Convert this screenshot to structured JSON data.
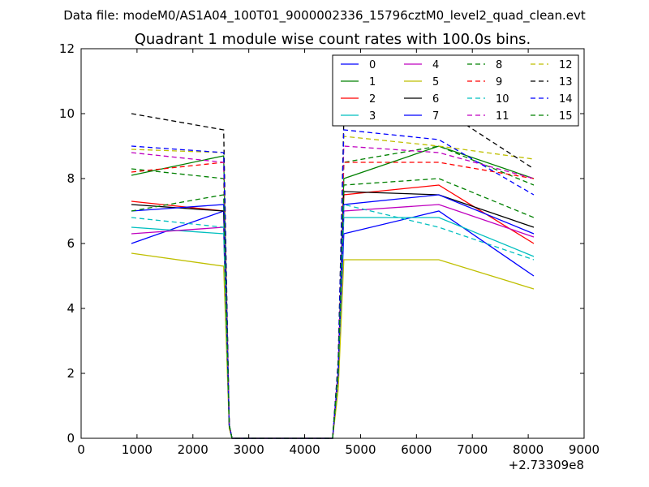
{
  "suptitle": "Data file: modeM0/AS1A04_100T01_9000002336_15796cztM0_level2_quad_clean.evt",
  "chart_data": {
    "type": "line",
    "title": "Quadrant 1 module wise count rates with 100.0s bins.",
    "xlabel": "",
    "ylabel": "",
    "x_offset_label": "+2.73309e8",
    "xlim": [
      0,
      9000
    ],
    "ylim": [
      0,
      12
    ],
    "xticks": [
      0,
      1000,
      2000,
      3000,
      4000,
      5000,
      6000,
      7000,
      8000,
      9000
    ],
    "yticks": [
      0,
      2,
      4,
      6,
      8,
      10,
      12
    ],
    "grid": false,
    "legend": {
      "placement": "top-right",
      "columns": 4
    },
    "x": [
      900,
      2550,
      2650,
      2700,
      4500,
      4600,
      4700,
      6400,
      8100
    ],
    "series": [
      {
        "name": "0",
        "color": "#0000ff",
        "dash": "solid",
        "values": [
          6.0,
          7.0,
          0.4,
          0.0,
          0.0,
          2.0,
          6.3,
          7.0,
          5.0
        ]
      },
      {
        "name": "1",
        "color": "#008000",
        "dash": "solid",
        "values": [
          8.1,
          8.7,
          0.4,
          0.0,
          0.0,
          2.0,
          8.0,
          9.0,
          8.0
        ]
      },
      {
        "name": "2",
        "color": "#ff0000",
        "dash": "solid",
        "values": [
          7.3,
          7.0,
          0.4,
          0.0,
          0.0,
          2.0,
          7.5,
          7.8,
          6.0
        ]
      },
      {
        "name": "3",
        "color": "#00bfbf",
        "dash": "solid",
        "values": [
          6.5,
          6.3,
          0.4,
          0.0,
          0.0,
          2.0,
          6.8,
          6.8,
          5.6
        ]
      },
      {
        "name": "4",
        "color": "#bf00bf",
        "dash": "solid",
        "values": [
          6.3,
          6.5,
          0.4,
          0.0,
          0.0,
          2.0,
          7.0,
          7.2,
          6.2
        ]
      },
      {
        "name": "5",
        "color": "#bfbf00",
        "dash": "solid",
        "values": [
          5.7,
          5.3,
          0.3,
          0.0,
          0.0,
          1.5,
          5.5,
          5.5,
          4.6
        ]
      },
      {
        "name": "6",
        "color": "#000000",
        "dash": "solid",
        "values": [
          7.2,
          7.0,
          0.4,
          0.0,
          0.0,
          2.0,
          7.6,
          7.5,
          6.5
        ]
      },
      {
        "name": "7",
        "color": "#0000ff",
        "dash": "solid",
        "values": [
          7.0,
          7.2,
          0.4,
          0.0,
          0.0,
          2.0,
          7.2,
          7.5,
          6.3
        ]
      },
      {
        "name": "8",
        "color": "#008000",
        "dash": "dashed",
        "values": [
          8.3,
          8.0,
          0.4,
          0.0,
          0.0,
          2.2,
          8.5,
          9.0,
          7.8
        ]
      },
      {
        "name": "9",
        "color": "#ff0000",
        "dash": "dashed",
        "values": [
          8.2,
          8.5,
          0.4,
          0.0,
          0.0,
          2.2,
          8.5,
          8.5,
          8.0
        ]
      },
      {
        "name": "10",
        "color": "#00bfbf",
        "dash": "dashed",
        "values": [
          6.8,
          6.5,
          0.4,
          0.0,
          0.0,
          2.0,
          7.2,
          6.5,
          5.5
        ]
      },
      {
        "name": "11",
        "color": "#bf00bf",
        "dash": "dashed",
        "values": [
          8.8,
          8.5,
          0.4,
          0.0,
          0.0,
          2.2,
          9.0,
          8.8,
          8.0
        ]
      },
      {
        "name": "12",
        "color": "#bfbf00",
        "dash": "dashed",
        "values": [
          8.9,
          8.8,
          0.4,
          0.0,
          0.0,
          2.3,
          9.3,
          9.0,
          8.6
        ]
      },
      {
        "name": "13",
        "color": "#000000",
        "dash": "dashed",
        "values": [
          10.0,
          9.5,
          0.4,
          0.0,
          0.0,
          2.4,
          9.8,
          10.2,
          8.3
        ]
      },
      {
        "name": "14",
        "color": "#0000ff",
        "dash": "dashed",
        "values": [
          9.0,
          8.8,
          0.4,
          0.0,
          0.0,
          2.3,
          9.5,
          9.2,
          7.5
        ]
      },
      {
        "name": "15",
        "color": "#008000",
        "dash": "dashed",
        "values": [
          7.0,
          7.5,
          0.4,
          0.0,
          0.0,
          2.1,
          7.8,
          8.0,
          6.8
        ]
      }
    ]
  }
}
